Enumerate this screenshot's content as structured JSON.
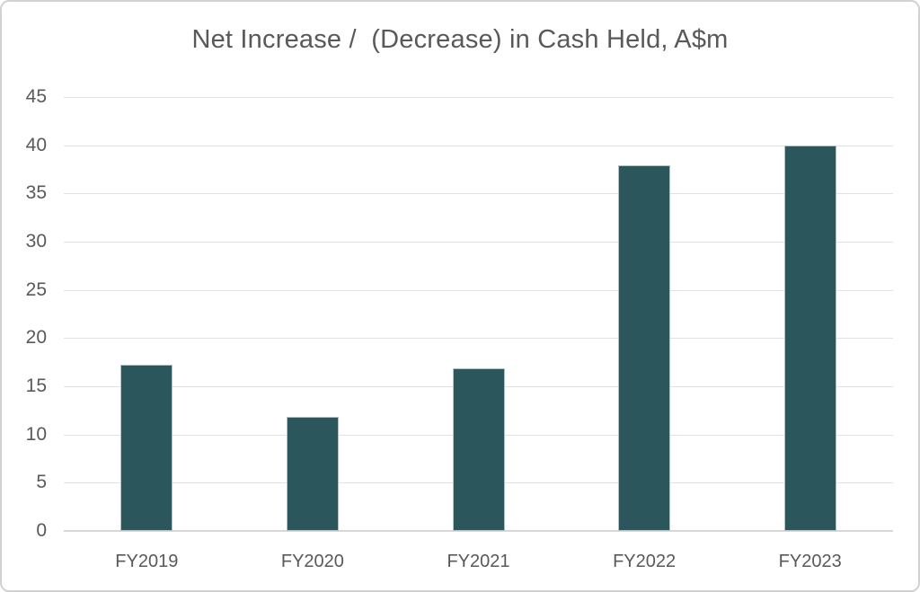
{
  "chart_data": {
    "type": "bar",
    "title": "Net Increase /  (Decrease) in Cash Held, A$m",
    "categories": [
      "FY2019",
      "FY2020",
      "FY2021",
      "FY2022",
      "FY2023"
    ],
    "values": [
      17.2,
      11.8,
      16.9,
      37.9,
      40.0
    ],
    "xlabel": "",
    "ylabel": "",
    "ylim": [
      0,
      45
    ],
    "ytick_step": 5,
    "grid": true,
    "legend": false,
    "bar_color": "#2b565b",
    "bar_edge_color": "#b0c2c4",
    "axis_text_color": "#595959",
    "gridline_color": "#e2e2e2",
    "axis_line_color": "#d7d7d7",
    "background_color": "#ffffff",
    "border_color": "#d2d2d2"
  }
}
